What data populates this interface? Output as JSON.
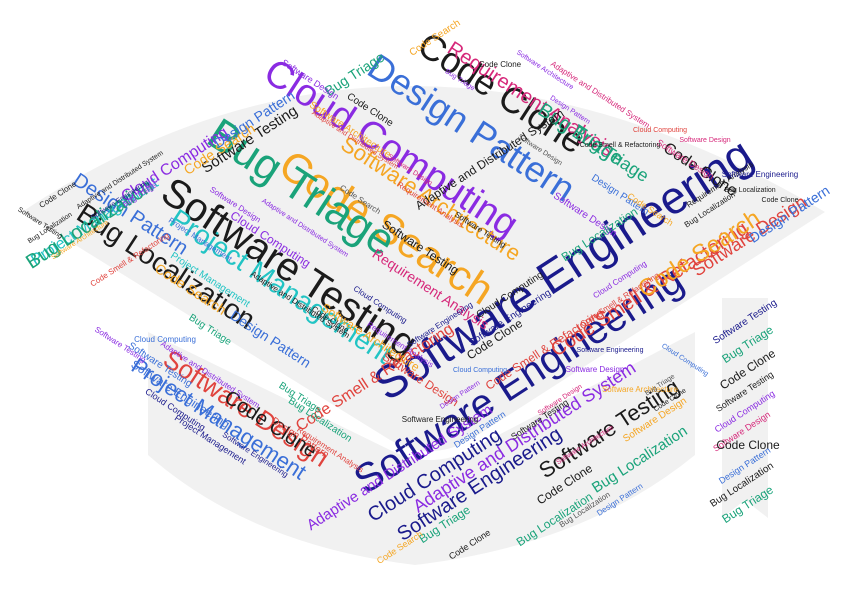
{
  "palette": {
    "background": "#ffffff",
    "shape_fill": "#f1f1f1",
    "navy": "#1a1a8c",
    "black": "#1b1b1b",
    "orange": "#f5a623",
    "purple": "#8a2be2",
    "teal": "#1aa37a",
    "blue": "#3a6fd8",
    "magenta": "#d6287a",
    "red": "#e0433d",
    "turquoise": "#22c4c4",
    "grey": "#555555"
  },
  "words": [
    "Software Engineering",
    "Code Search",
    "Bug Triage",
    "Cloud Computing",
    "Software Testing",
    "Design Pattern",
    "Code Clone",
    "Project Management",
    "Bug Localization",
    "Software Architecture",
    "Requirement Analysis",
    "Code Smell & Refactoring",
    "Software Design",
    "Adaptive and Distributed System"
  ]
}
